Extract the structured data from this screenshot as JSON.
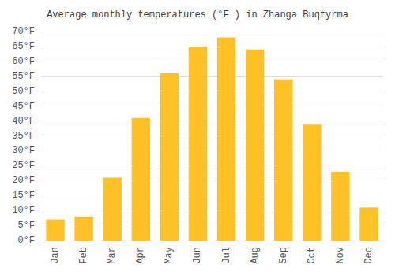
{
  "chart_data": {
    "type": "bar",
    "title": "Average monthly temperatures (°F ) in Zhanga Buqtyrma",
    "categories": [
      "Jan",
      "Feb",
      "Mar",
      "Apr",
      "May",
      "Jun",
      "Jul",
      "Aug",
      "Sep",
      "Oct",
      "Nov",
      "Dec"
    ],
    "values": [
      7,
      8,
      21,
      41,
      56,
      65,
      68,
      64,
      54,
      39,
      23,
      11
    ],
    "color": "#FFC125",
    "ylim": [
      0,
      70
    ],
    "yticks": [
      {
        "value": 0,
        "label": "0°F"
      },
      {
        "value": 5,
        "label": "5°F"
      },
      {
        "value": 10,
        "label": "10°F"
      },
      {
        "value": 15,
        "label": "15°F"
      },
      {
        "value": 20,
        "label": "20°F"
      },
      {
        "value": 25,
        "label": "25°F"
      },
      {
        "value": 30,
        "label": "30°F"
      },
      {
        "value": 35,
        "label": "35°F"
      },
      {
        "value": 40,
        "label": "40°F"
      },
      {
        "value": 45,
        "label": "45°F"
      },
      {
        "value": 50,
        "label": "50°F"
      },
      {
        "value": 55,
        "label": "55°F"
      },
      {
        "value": 60,
        "label": "60°F"
      },
      {
        "value": 65,
        "label": "65°F"
      },
      {
        "value": 70,
        "label": "70°F"
      }
    ],
    "grid": true
  }
}
